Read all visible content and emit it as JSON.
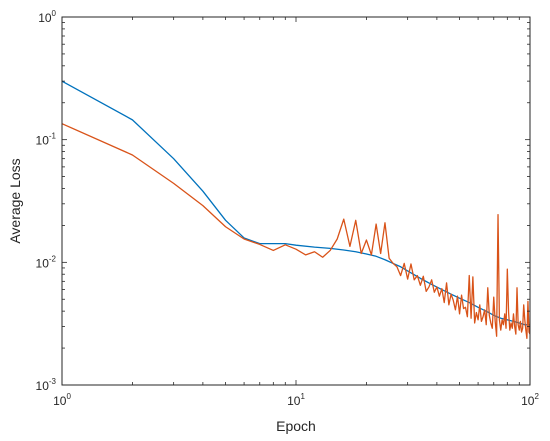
{
  "chart_data": {
    "type": "line",
    "title": "",
    "xlabel": "Epoch",
    "ylabel": "Average Loss",
    "xscale": "log",
    "yscale": "log",
    "xlim": [
      1,
      100
    ],
    "ylim": [
      0.001,
      1
    ],
    "grid": false,
    "legend": "none",
    "x_ticks": [
      {
        "value": 1,
        "base": "10",
        "exp": "0"
      },
      {
        "value": 10,
        "base": "10",
        "exp": "1"
      },
      {
        "value": 100,
        "base": "10",
        "exp": "2"
      }
    ],
    "y_ticks": [
      {
        "value": 0.001,
        "base": "10",
        "exp": "-3"
      },
      {
        "value": 0.01,
        "base": "10",
        "exp": "-2"
      },
      {
        "value": 0.1,
        "base": "10",
        "exp": "-1"
      },
      {
        "value": 1,
        "base": "10",
        "exp": "0"
      }
    ],
    "series": [
      {
        "color": "#0072BD",
        "x": [
          1,
          2,
          3,
          4,
          5,
          6,
          7,
          8,
          9,
          10,
          12,
          14,
          16,
          18,
          20,
          22,
          24,
          26,
          28,
          30,
          34,
          38,
          42,
          46,
          50,
          55,
          60,
          65,
          70,
          75,
          80,
          85,
          90,
          95,
          100
        ],
        "y": [
          0.3,
          0.145,
          0.07,
          0.038,
          0.022,
          0.0158,
          0.0142,
          0.0142,
          0.0142,
          0.0138,
          0.0133,
          0.013,
          0.0126,
          0.0122,
          0.0117,
          0.0112,
          0.0105,
          0.0098,
          0.0092,
          0.0085,
          0.0074,
          0.0066,
          0.006,
          0.0055,
          0.0051,
          0.0047,
          0.0043,
          0.004,
          0.0037,
          0.0035,
          0.0034,
          0.0033,
          0.0032,
          0.0031,
          0.0031
        ]
      },
      {
        "color": "#D95319",
        "x": [
          1,
          2,
          3,
          4,
          5,
          6,
          7,
          8,
          9,
          10,
          11,
          12,
          13,
          14,
          15,
          16,
          17,
          18,
          19,
          20,
          21,
          22,
          23,
          24,
          25,
          26,
          27,
          28,
          29,
          30,
          31,
          32,
          33,
          34,
          35,
          36,
          37,
          38,
          39,
          40,
          41,
          42,
          43,
          44,
          45,
          46,
          47,
          48,
          49,
          50,
          51,
          52,
          53,
          54,
          55,
          56,
          57,
          58,
          59,
          60,
          61,
          62,
          63,
          64,
          65,
          66,
          67,
          68,
          69,
          70,
          71,
          72,
          73,
          74,
          75,
          76,
          77,
          78,
          79,
          80,
          81,
          82,
          83,
          84,
          85,
          86,
          87,
          88,
          89,
          90,
          91,
          92,
          93,
          94,
          95,
          96,
          97,
          98,
          99,
          100
        ],
        "y": [
          0.135,
          0.075,
          0.044,
          0.029,
          0.0195,
          0.0155,
          0.014,
          0.0125,
          0.0139,
          0.0128,
          0.0115,
          0.0122,
          0.011,
          0.0125,
          0.0155,
          0.0225,
          0.0135,
          0.022,
          0.0118,
          0.0152,
          0.0115,
          0.0205,
          0.0118,
          0.021,
          0.0108,
          0.0098,
          0.0092,
          0.0078,
          0.0098,
          0.0073,
          0.0097,
          0.0072,
          0.0078,
          0.0065,
          0.0077,
          0.0058,
          0.0063,
          0.0072,
          0.0057,
          0.0063,
          0.0053,
          0.0061,
          0.0047,
          0.0068,
          0.0045,
          0.0055,
          0.0049,
          0.0041,
          0.0053,
          0.0038,
          0.0054,
          0.0042,
          0.0043,
          0.0036,
          0.0047,
          0.0035,
          0.0041,
          0.0032,
          0.0039,
          0.0034,
          0.0045,
          0.0033,
          0.0036,
          0.0041,
          0.0031,
          0.0042,
          0.0037,
          0.0032,
          0.0029,
          0.0045,
          0.0033,
          0.0025,
          0.0032,
          0.0034,
          0.0028,
          0.0034,
          0.0031,
          0.0038,
          0.0029,
          0.0027,
          0.0039,
          0.0028,
          0.0032,
          0.0029,
          0.0038,
          0.003,
          0.0026,
          0.0032,
          0.0031,
          0.0028,
          0.0033,
          0.0027,
          0.0029,
          0.0032,
          0.0034,
          0.0028,
          0.0024,
          0.0031,
          0.0027,
          0.0026
        ],
        "spikes": [
          {
            "x": 73,
            "y": 0.0245
          },
          {
            "x": 55,
            "y": 0.0078
          },
          {
            "x": 57,
            "y": 0.0076
          },
          {
            "x": 66,
            "y": 0.0062
          },
          {
            "x": 70,
            "y": 0.0052
          },
          {
            "x": 80,
            "y": 0.0088
          },
          {
            "x": 88,
            "y": 0.0062
          },
          {
            "x": 94,
            "y": 0.0045
          },
          {
            "x": 98,
            "y": 0.0048
          }
        ]
      }
    ]
  }
}
